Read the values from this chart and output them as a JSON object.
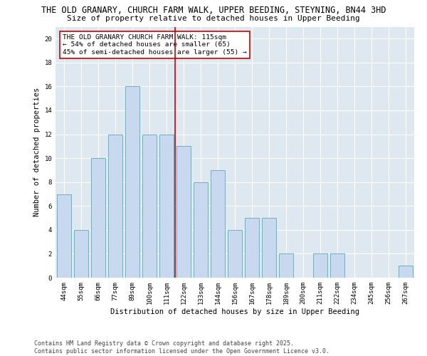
{
  "title1": "THE OLD GRANARY, CHURCH FARM WALK, UPPER BEEDING, STEYNING, BN44 3HD",
  "title2": "Size of property relative to detached houses in Upper Beeding",
  "xlabel": "Distribution of detached houses by size in Upper Beeding",
  "ylabel": "Number of detached properties",
  "categories": [
    "44sqm",
    "55sqm",
    "66sqm",
    "77sqm",
    "89sqm",
    "100sqm",
    "111sqm",
    "122sqm",
    "133sqm",
    "144sqm",
    "156sqm",
    "167sqm",
    "178sqm",
    "189sqm",
    "200sqm",
    "211sqm",
    "222sqm",
    "234sqm",
    "245sqm",
    "256sqm",
    "267sqm"
  ],
  "values": [
    7,
    4,
    10,
    12,
    16,
    12,
    12,
    11,
    8,
    9,
    4,
    5,
    5,
    2,
    0,
    2,
    2,
    0,
    0,
    0,
    1
  ],
  "bar_color": "#c8d8ee",
  "bar_edge_color": "#7aaabb",
  "vline_x": 6.5,
  "vline_color": "#cc0000",
  "annotation_text": "THE OLD GRANARY CHURCH FARM WALK: 115sqm\n← 54% of detached houses are smaller (65)\n45% of semi-detached houses are larger (55) →",
  "annotation_box_color": "#cc0000",
  "ylim": [
    0,
    21
  ],
  "yticks": [
    0,
    2,
    4,
    6,
    8,
    10,
    12,
    14,
    16,
    18,
    20
  ],
  "background_color": "#dde8f0",
  "grid_color": "#ffffff",
  "footer_text": "Contains HM Land Registry data © Crown copyright and database right 2025.\nContains public sector information licensed under the Open Government Licence v3.0.",
  "title1_fontsize": 8.5,
  "title2_fontsize": 8.0,
  "xlabel_fontsize": 7.5,
  "ylabel_fontsize": 7.5,
  "tick_fontsize": 6.5,
  "annotation_fontsize": 6.8,
  "footer_fontsize": 6.0
}
